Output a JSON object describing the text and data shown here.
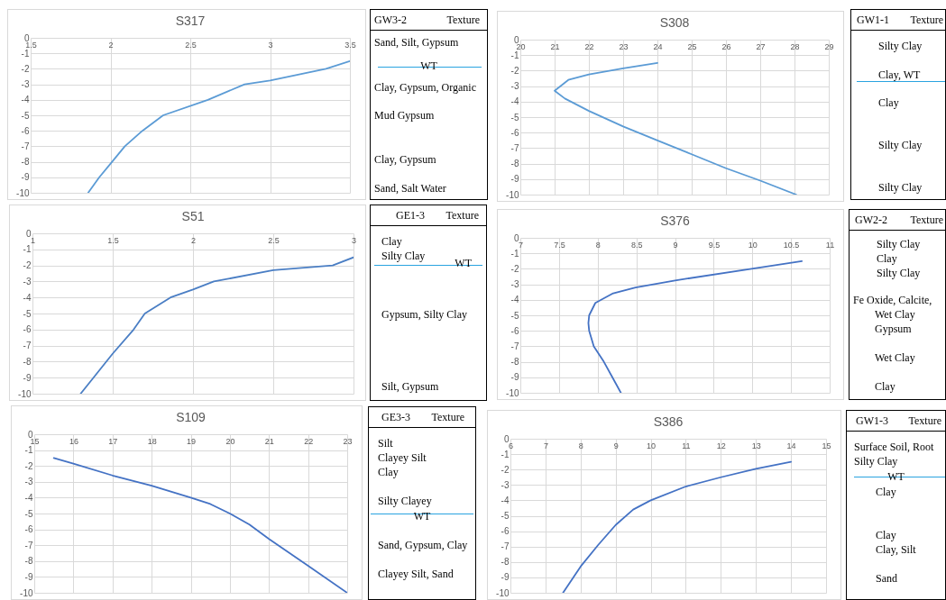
{
  "chart_data": [
    {
      "type": "line",
      "title": "S317",
      "xlim": [
        1.5,
        3.5
      ],
      "xticks": [
        1.5,
        2,
        2.5,
        3,
        3.5
      ],
      "ylim": [
        -10,
        0
      ],
      "yticks": [
        0,
        -1,
        -2,
        -3,
        -4,
        -5,
        -6,
        -7,
        -8,
        -9,
        -10
      ],
      "grid": true,
      "series": [
        {
          "color": "#5b9bd5",
          "x": [
            3.5,
            3.35,
            3.0,
            2.84,
            2.61,
            2.33,
            2.2,
            2.09,
            2.01,
            1.93,
            1.86
          ],
          "values": [
            -1.5,
            -2,
            -2.75,
            -3,
            -4,
            -5,
            -6,
            -7,
            -8,
            -9,
            -10
          ]
        }
      ]
    },
    {
      "type": "other",
      "title": "GW3-2",
      "subtitle": "Texture",
      "annotations": [
        "Sand, Silt, Gypsum",
        "WT",
        "Clay, Gypsum, Organic",
        "Mud Gypsum",
        "Clay, Gypsum",
        "Sand, Salt Water"
      ]
    },
    {
      "type": "line",
      "title": "S308",
      "xlim": [
        20,
        29
      ],
      "xticks": [
        20,
        21,
        22,
        23,
        24,
        25,
        26,
        27,
        28,
        29
      ],
      "ylim": [
        -10,
        0
      ],
      "yticks": [
        0,
        -1,
        -2,
        -3,
        -4,
        -5,
        -6,
        -7,
        -8,
        -9,
        -10
      ],
      "grid": true,
      "series": [
        {
          "color": "#5b9bd5",
          "x": [
            24,
            23,
            22,
            21.4,
            21.0,
            21.3,
            22,
            23,
            24,
            25,
            26,
            27,
            28.05
          ],
          "values": [
            -1.5,
            -1.85,
            -2.25,
            -2.6,
            -3.3,
            -3.8,
            -4.6,
            -5.6,
            -6.5,
            -7.4,
            -8.3,
            -9.1,
            -10
          ]
        }
      ]
    },
    {
      "type": "other",
      "title": "GW1-1",
      "subtitle": "Texture",
      "annotations": [
        "Silty Clay",
        "Clay, WT",
        "Clay",
        "Silty Clay",
        "Silty Clay"
      ]
    },
    {
      "type": "line",
      "title": "S51",
      "xlim": [
        1,
        3
      ],
      "xticks": [
        1,
        1.5,
        2,
        2.5,
        3
      ],
      "ylim": [
        -10,
        0
      ],
      "yticks": [
        0,
        -1,
        -2,
        -3,
        -4,
        -5,
        -6,
        -7,
        -8,
        -9,
        -10
      ],
      "grid": true,
      "series": [
        {
          "color": "#4a7ec4",
          "x": [
            3,
            2.87,
            2.5,
            2.13,
            2.0,
            1.86,
            1.7,
            1.63,
            1.5,
            1.38,
            1.3
          ],
          "values": [
            -1.5,
            -2,
            -2.3,
            -3,
            -3.5,
            -4,
            -5,
            -6,
            -7.5,
            -9,
            -10
          ]
        }
      ]
    },
    {
      "type": "other",
      "title": "GE1-3",
      "subtitle": "Texture",
      "annotations": [
        "Clay",
        "Silty Clay",
        "WT",
        "Gypsum, Silty Clay",
        "Silt, Gypsum"
      ]
    },
    {
      "type": "line",
      "title": "S376",
      "xlim": [
        7,
        11
      ],
      "xticks": [
        7,
        7.5,
        8,
        8.5,
        9,
        9.5,
        10,
        10.5,
        11
      ],
      "ylim": [
        -10,
        0
      ],
      "yticks": [
        0,
        -1,
        -2,
        -3,
        -4,
        -5,
        -6,
        -7,
        -8,
        -9,
        -10
      ],
      "grid": true,
      "series": [
        {
          "color": "#4472c4",
          "x": [
            10.64,
            9.99,
            9.0,
            8.49,
            8.19,
            7.97,
            7.89,
            7.88,
            7.89,
            7.95,
            8.08,
            8.19,
            8.3
          ],
          "values": [
            -1.5,
            -2,
            -2.75,
            -3.2,
            -3.6,
            -4.2,
            -5,
            -5.5,
            -6,
            -7,
            -8,
            -9,
            -10
          ]
        }
      ]
    },
    {
      "type": "other",
      "title": "GW2-2",
      "subtitle": "Texture",
      "annotations": [
        "Silty Clay",
        "Clay",
        "Silty Clay",
        "Fe Oxide, Calcite,",
        "Wet Clay",
        "Gypsum",
        "Wet Clay",
        "Clay"
      ]
    },
    {
      "type": "line",
      "title": "S109",
      "xlim": [
        15,
        23
      ],
      "xticks": [
        15,
        16,
        17,
        18,
        19,
        20,
        21,
        22,
        23
      ],
      "ylim": [
        -10,
        0
      ],
      "yticks": [
        0,
        -1,
        -2,
        -3,
        -4,
        -5,
        -6,
        -7,
        -8,
        -9,
        -10
      ],
      "grid": true,
      "series": [
        {
          "color": "#4472c4",
          "x": [
            15.5,
            16,
            17,
            18,
            19,
            19.5,
            20,
            20.5,
            21,
            22,
            23
          ],
          "values": [
            -1.5,
            -1.85,
            -2.6,
            -3.25,
            -4.0,
            -4.4,
            -5.0,
            -5.7,
            -6.6,
            -8.3,
            -10
          ]
        }
      ]
    },
    {
      "type": "other",
      "title": "GE3-3",
      "subtitle": "Texture",
      "annotations": [
        "Silt",
        "Clayey Silt",
        "Clay",
        "Silty Clayey",
        "WT",
        "Sand, Gypsum, Clay",
        "Clayey Silt, Sand"
      ]
    },
    {
      "type": "line",
      "title": "S386",
      "xlim": [
        6,
        15
      ],
      "xticks": [
        6,
        7,
        8,
        9,
        10,
        11,
        12,
        13,
        14,
        15
      ],
      "ylim": [
        -10,
        0
      ],
      "yticks": [
        0,
        -1,
        -2,
        -3,
        -4,
        -5,
        -6,
        -7,
        -8,
        -9,
        -10
      ],
      "grid": true,
      "series": [
        {
          "color": "#4472c4",
          "x": [
            14,
            13,
            12,
            11,
            10,
            9.5,
            9,
            8.5,
            8,
            7.5
          ],
          "values": [
            -1.5,
            -1.95,
            -2.5,
            -3.1,
            -4.0,
            -4.6,
            -5.6,
            -6.9,
            -8.3,
            -10
          ]
        }
      ]
    },
    {
      "type": "other",
      "title": "GW1-3",
      "subtitle": "Texture",
      "annotations": [
        "Surface Soil, Root",
        "Silty Clay",
        "WT",
        "Clay",
        "Clay",
        "Clay, Silt",
        "Sand"
      ]
    }
  ]
}
